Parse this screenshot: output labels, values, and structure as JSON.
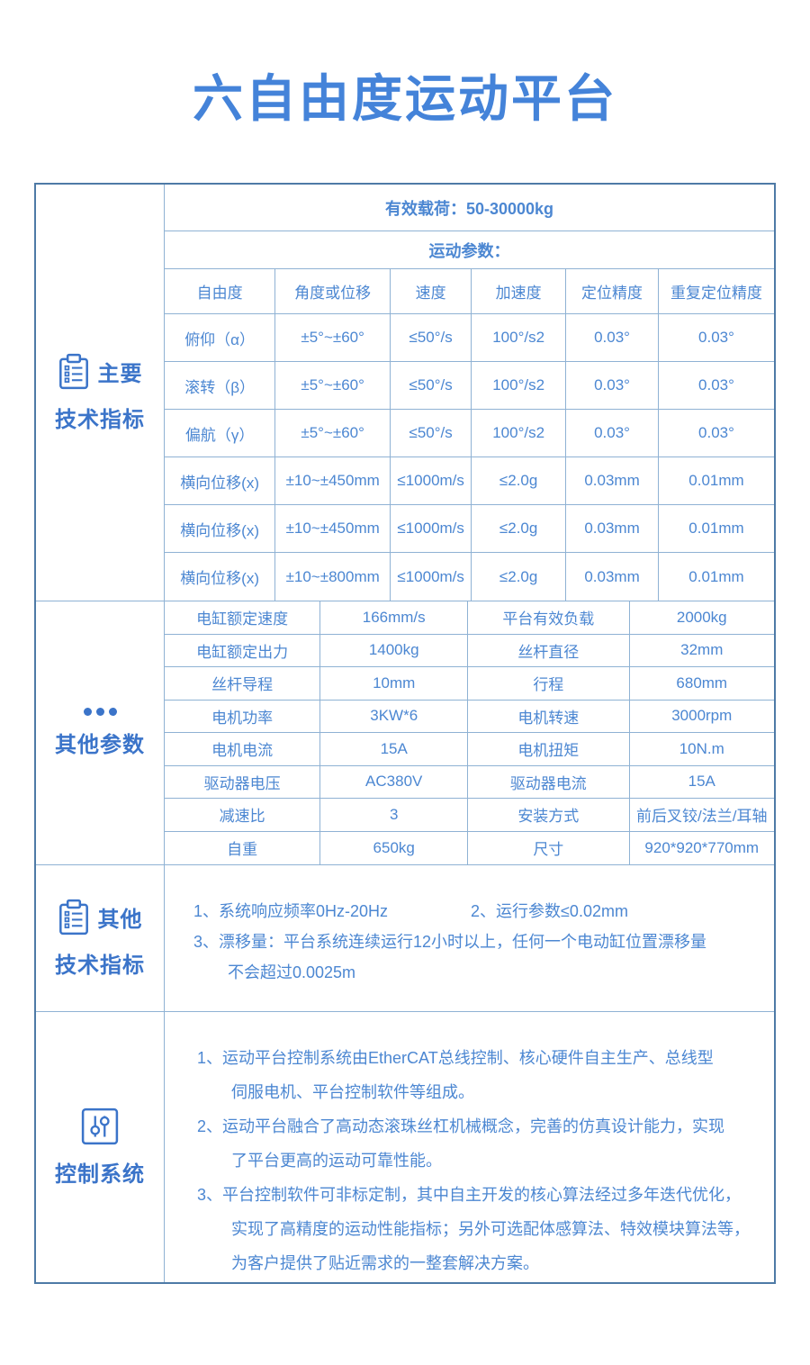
{
  "page": {
    "title": "六自由度运动平台"
  },
  "colors": {
    "accent_text": "#4c87d2",
    "label_text": "#3b74c9",
    "title_text": "#4483d9",
    "outer_border": "#4e7aa6",
    "inner_border": "#8fb2d4"
  },
  "sections": {
    "main_specs": {
      "icon": "clipboard-icon",
      "label_line1": "主要",
      "label_line2": "技术指标",
      "payload_header": "有效载荷：50-30000kg",
      "motion_header": "运动参数：",
      "motion_table": {
        "type": "table",
        "columns": [
          "自由度",
          "角度或位移",
          "速度",
          "加速度",
          "定位精度",
          "重复定位精度"
        ],
        "rows": [
          [
            "俯仰（α）",
            "±5°~±60°",
            "≤50°/s",
            "100°/s2",
            "0.03°",
            "0.03°"
          ],
          [
            "滚转（β）",
            "±5°~±60°",
            "≤50°/s",
            "100°/s2",
            "0.03°",
            "0.03°"
          ],
          [
            "偏航（γ）",
            "±5°~±60°",
            "≤50°/s",
            "100°/s2",
            "0.03°",
            "0.03°"
          ],
          [
            "横向位移(x)",
            "±10~±450mm",
            "≤1000m/s",
            "≤2.0g",
            "0.03mm",
            "0.01mm"
          ],
          [
            "横向位移(x)",
            "±10~±450mm",
            "≤1000m/s",
            "≤2.0g",
            "0.03mm",
            "0.01mm"
          ],
          [
            "横向位移(x)",
            "±10~±800mm",
            "≤1000m/s",
            "≤2.0g",
            "0.03mm",
            "0.01mm"
          ]
        ]
      }
    },
    "other_params": {
      "icon": "dots-icon",
      "label": "其他参数",
      "rows": [
        [
          "电缸额定速度",
          "166mm/s",
          "平台有效负载",
          "2000kg"
        ],
        [
          "电缸额定出力",
          "1400kg",
          "丝杆直径",
          "32mm"
        ],
        [
          "丝杆导程",
          "10mm",
          "行程",
          "680mm"
        ],
        [
          "电机功率",
          "3KW*6",
          "电机转速",
          "3000rpm"
        ],
        [
          "电机电流",
          "15A",
          "电机扭矩",
          "10N.m"
        ],
        [
          "驱动器电压",
          "AC380V",
          "驱动器电流",
          "15A"
        ],
        [
          "减速比",
          "3",
          "安装方式",
          "前后叉铰/法兰/耳轴"
        ],
        [
          "自重",
          "650kg",
          "尺寸",
          "920*920*770mm"
        ]
      ]
    },
    "other_specs": {
      "icon": "clipboard-icon",
      "label_line1": "其他",
      "label_line2": "技术指标",
      "note1": "1、系统响应频率0Hz-20Hz",
      "note2": "2、运行参数≤0.02mm",
      "note3_line1": "3、漂移量：平台系统连续运行12小时以上，任何一个电动缸位置漂移量",
      "note3_line2": "不会超过0.0025m"
    },
    "control_system": {
      "icon": "sliders-icon",
      "label": "控制系统",
      "items": [
        {
          "lines": [
            "1、运动平台控制系统由EtherCAT总线控制、核心硬件自主生产、总线型",
            "伺服电机、平台控制软件等组成。"
          ]
        },
        {
          "lines": [
            "2、运动平台融合了高动态滚珠丝杠机械概念，完善的仿真设计能力，实现",
            "了平台更高的运动可靠性能。"
          ]
        },
        {
          "lines": [
            "3、平台控制软件可非标定制，其中自主开发的核心算法经过多年迭代优化，",
            "实现了高精度的运动性能指标；另外可选配体感算法、特效模块算法等，",
            "为客户提供了贴近需求的一整套解决方案。"
          ]
        }
      ]
    }
  }
}
